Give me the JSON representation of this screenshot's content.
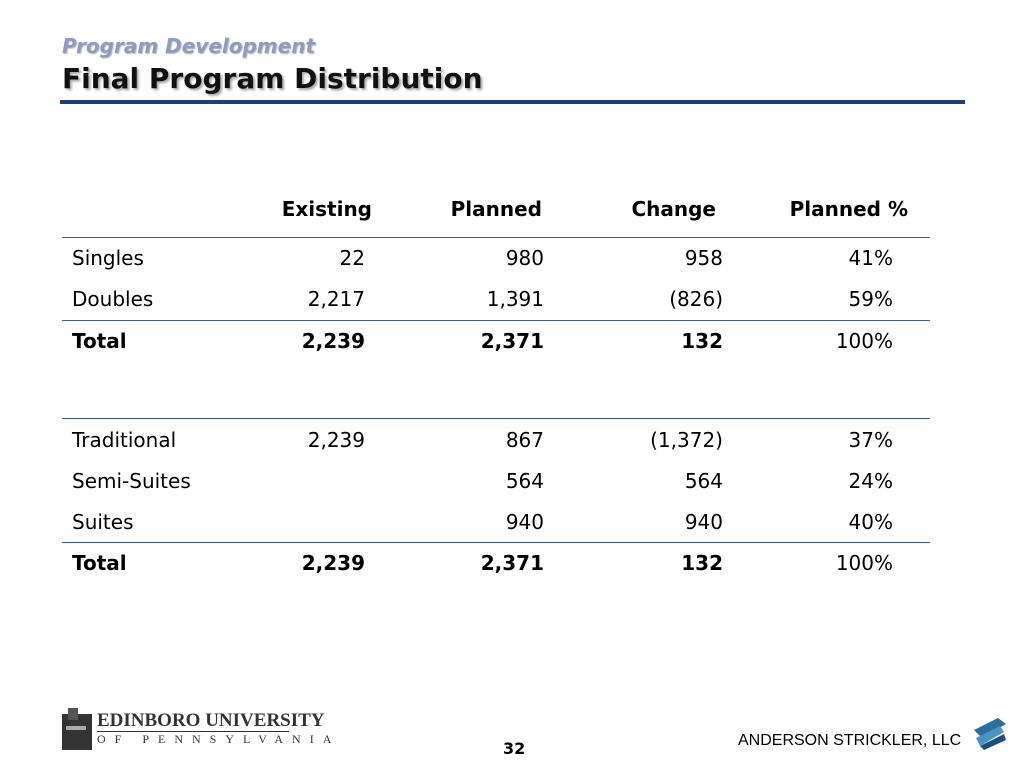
{
  "header": {
    "subtitle": "Program Development",
    "title": "Final Program Distribution"
  },
  "table": {
    "columns": [
      "Existing",
      "Planned",
      "Change",
      "Planned %"
    ],
    "groups": [
      {
        "rows": [
          [
            "Singles",
            "22",
            "980",
            "958",
            "41%"
          ],
          [
            "Doubles",
            "2,217",
            "1,391",
            "(826)",
            "59%"
          ]
        ],
        "total": [
          "Total",
          "2,239",
          "2,371",
          "132",
          "100%"
        ]
      },
      {
        "rows": [
          [
            "Traditional",
            "2,239",
            "867",
            "(1,372)",
            "37%"
          ],
          [
            "Semi-Suites",
            null,
            "564",
            "564",
            "24%"
          ],
          [
            "Suites",
            null,
            "940",
            "940",
            "40%"
          ]
        ],
        "total": [
          "Total",
          "2,239",
          "2,371",
          "132",
          "100%"
        ]
      }
    ]
  },
  "footer": {
    "logo_name": "EDINBORO UNIVERSITY",
    "logo_sub": "OF PENNSYLVANIA",
    "page": "32",
    "firm": "ANDERSON STRICKLER, LLC"
  }
}
